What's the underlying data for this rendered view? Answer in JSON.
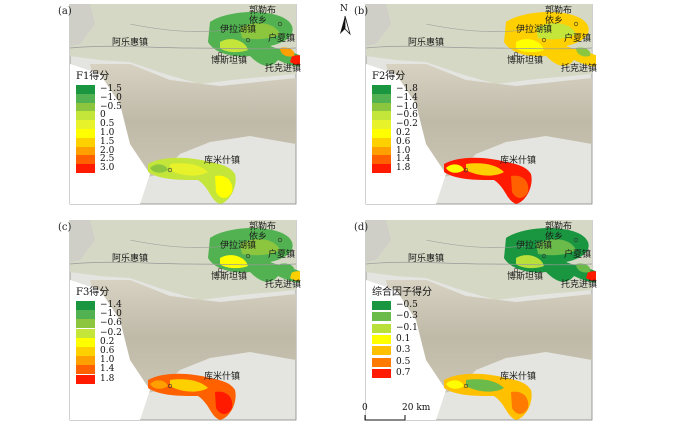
{
  "towns": {
    "aleshui": "阿乐惠镇",
    "yilahu": "伊拉湖镇",
    "guolebu": "郭勒布\n依乡",
    "huxia": "户夏镇",
    "bositan": "博斯坦镇",
    "tuokejin": "托克进镇",
    "kumishi": "库米什镇"
  },
  "panels": [
    {
      "label": "(a)",
      "legend_title": "F1得分",
      "legend": [
        {
          "value": "−1.5",
          "color": "#1a9641"
        },
        {
          "value": "−1.0",
          "color": "#52b151"
        },
        {
          "value": "−0.5",
          "color": "#8cc63f"
        },
        {
          "value": "0",
          "color": "#c4e539"
        },
        {
          "value": "0.5",
          "color": "#e8f22a"
        },
        {
          "value": "1.0",
          "color": "#ffff00"
        },
        {
          "value": "1.5",
          "color": "#ffd000"
        },
        {
          "value": "2.0",
          "color": "#ffa000"
        },
        {
          "value": "2.5",
          "color": "#ff6000"
        },
        {
          "value": "3.0",
          "color": "#ff1a00"
        }
      ]
    },
    {
      "label": "(b)",
      "legend_title": "F2得分",
      "legend": [
        {
          "value": "−1.8",
          "color": "#1a9641"
        },
        {
          "value": "−1.4",
          "color": "#52b151"
        },
        {
          "value": "−1.0",
          "color": "#8cc63f"
        },
        {
          "value": "−0.6",
          "color": "#c4e539"
        },
        {
          "value": "−0.2",
          "color": "#e8f22a"
        },
        {
          "value": "0.2",
          "color": "#ffff00"
        },
        {
          "value": "0.6",
          "color": "#ffd000"
        },
        {
          "value": "1.0",
          "color": "#ffa000"
        },
        {
          "value": "1.4",
          "color": "#ff6000"
        },
        {
          "value": "1.8",
          "color": "#ff1a00"
        }
      ]
    },
    {
      "label": "(c)",
      "legend_title": "F3得分",
      "legend": [
        {
          "value": "−1.4",
          "color": "#1a9641"
        },
        {
          "value": "−1.0",
          "color": "#52b151"
        },
        {
          "value": "−0.6",
          "color": "#8cc63f"
        },
        {
          "value": "−0.2",
          "color": "#c4e539"
        },
        {
          "value": "0.2",
          "color": "#ffff00"
        },
        {
          "value": "0.6",
          "color": "#ffd000"
        },
        {
          "value": "1.0",
          "color": "#ffa000"
        },
        {
          "value": "1.4",
          "color": "#ff6000"
        },
        {
          "value": "1.8",
          "color": "#ff1a00"
        }
      ]
    },
    {
      "label": "(d)",
      "legend_title": "综合因子得分",
      "legend": [
        {
          "value": "−0.5",
          "color": "#1a9641"
        },
        {
          "value": "−0.3",
          "color": "#6bbb4a"
        },
        {
          "value": "−0.1",
          "color": "#b8df3a"
        },
        {
          "value": "0.1",
          "color": "#ffff00"
        },
        {
          "value": "0.3",
          "color": "#ffc000"
        },
        {
          "value": "0.5",
          "color": "#ff7a00"
        },
        {
          "value": "0.7",
          "color": "#ff1a00"
        }
      ]
    }
  ],
  "north": "N",
  "scale": {
    "zero": "0",
    "dist": "20 km"
  }
}
